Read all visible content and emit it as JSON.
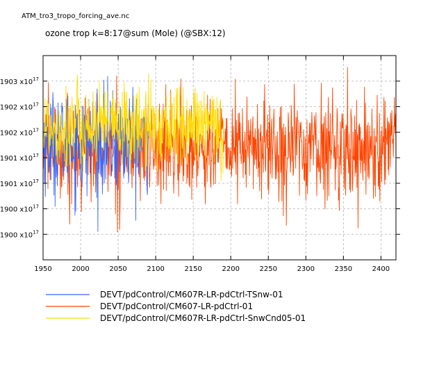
{
  "file_title": "ATM_tro3_tropo_forcing_ave.nc",
  "plot_title": "ozone trop k=8:17@sum (Mole) (@SBX:12)",
  "chart_data": {
    "type": "line",
    "xlim": [
      1950,
      2420
    ],
    "ylim": [
      0.18995,
      0.19035
    ],
    "x_ticks": [
      1950,
      2000,
      2050,
      2100,
      2150,
      2200,
      2250,
      2300,
      2350,
      2400
    ],
    "y_ticks": [
      {
        "value": 0.19,
        "label_prefix": ".1900",
        "label_exp_base": " x10",
        "label_exp": "17"
      },
      {
        "value": 0.19005,
        "label_prefix": ".1900",
        "label_exp_base": " x10",
        "label_exp": "17"
      },
      {
        "value": 0.1901,
        "label_prefix": ".1901",
        "label_exp_base": " x10",
        "label_exp": "17"
      },
      {
        "value": 0.19015,
        "label_prefix": ".1901",
        "label_exp_base": " x10",
        "label_exp": "17"
      },
      {
        "value": 0.1902,
        "label_prefix": ".1902",
        "label_exp_base": " x10",
        "label_exp": "17"
      },
      {
        "value": 0.19025,
        "label_prefix": ".1902",
        "label_exp_base": " x10",
        "label_exp": "17"
      },
      {
        "value": 0.1903,
        "label_prefix": ".1903",
        "label_exp_base": " x10",
        "label_exp": "17"
      }
    ],
    "grid": true,
    "legend_position": "bottom",
    "series": [
      {
        "name": "DEVT/pdControl/CM607R-LR-pdCtrl-TSnw-01",
        "color": "#3366ff",
        "x_range": [
          1950,
          2090
        ],
        "level_mean": 0.19018,
        "level_std": 5e-05
      },
      {
        "name": "DEVT/pdControl/CM607-LR-pdCtrl-01",
        "color": "#ff4400",
        "x_range": [
          1950,
          2420
        ],
        "level_mean": 0.19017,
        "level_std": 5e-05
      },
      {
        "name": "DEVT/pdControl/CM607R-LR-pdCtrl-SnwCnd05-01",
        "color": "#ffdd00",
        "x_range": [
          1950,
          2190
        ],
        "level_mean": 0.19021,
        "level_std": 4e-05
      }
    ]
  }
}
